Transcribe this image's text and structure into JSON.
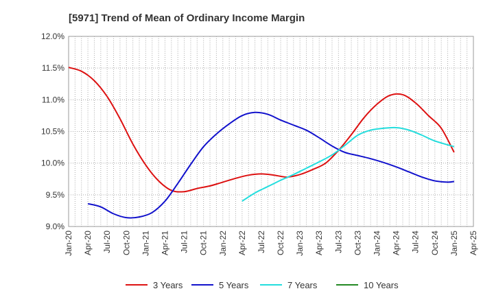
{
  "chart_data": {
    "type": "line",
    "title": "[5971]  Trend of Mean of Ordinary Income Margin",
    "xlabel": "",
    "ylabel": "",
    "x_ticks": [
      "Jan-20",
      "Apr-20",
      "Jul-20",
      "Oct-20",
      "Jan-21",
      "Apr-21",
      "Jul-21",
      "Oct-21",
      "Jan-22",
      "Apr-22",
      "Jul-22",
      "Oct-22",
      "Jan-23",
      "Apr-23",
      "Jul-23",
      "Oct-23",
      "Jan-24",
      "Apr-24",
      "Jul-24",
      "Oct-24",
      "Jan-25",
      "Apr-25"
    ],
    "y_ticks": [
      "9.0%",
      "9.5%",
      "10.0%",
      "10.5%",
      "11.0%",
      "11.5%",
      "12.0%"
    ],
    "ylim": [
      9.0,
      12.0
    ],
    "y_unit": "%",
    "grid": true,
    "legend_position": "bottom",
    "series": [
      {
        "name": "3 Years",
        "color": "#dd1111",
        "points": [
          [
            "Jan-20",
            11.51
          ],
          [
            "Mar-20",
            11.45
          ],
          [
            "May-20",
            11.3
          ],
          [
            "Jul-20",
            11.05
          ],
          [
            "Sep-20",
            10.7
          ],
          [
            "Nov-20",
            10.3
          ],
          [
            "Jan-21",
            9.97
          ],
          [
            "Mar-21",
            9.72
          ],
          [
            "May-21",
            9.57
          ],
          [
            "Jul-21",
            9.55
          ],
          [
            "Sep-21",
            9.6
          ],
          [
            "Nov-21",
            9.64
          ],
          [
            "Jan-22",
            9.7
          ],
          [
            "Mar-22",
            9.76
          ],
          [
            "May-22",
            9.81
          ],
          [
            "Jul-22",
            9.83
          ],
          [
            "Sep-22",
            9.81
          ],
          [
            "Nov-22",
            9.78
          ],
          [
            "Jan-23",
            9.82
          ],
          [
            "Mar-23",
            9.9
          ],
          [
            "May-23",
            10.0
          ],
          [
            "Jul-23",
            10.2
          ],
          [
            "Sep-23",
            10.45
          ],
          [
            "Nov-23",
            10.72
          ],
          [
            "Jan-24",
            10.93
          ],
          [
            "Mar-24",
            11.07
          ],
          [
            "May-24",
            11.08
          ],
          [
            "Jul-24",
            10.95
          ],
          [
            "Sep-24",
            10.75
          ],
          [
            "Nov-24",
            10.55
          ],
          [
            "Jan-25",
            10.17
          ]
        ]
      },
      {
        "name": "5 Years",
        "color": "#1111cc",
        "points": [
          [
            "Apr-20",
            9.36
          ],
          [
            "Jun-20",
            9.31
          ],
          [
            "Aug-20",
            9.2
          ],
          [
            "Oct-20",
            9.14
          ],
          [
            "Dec-20",
            9.15
          ],
          [
            "Feb-21",
            9.22
          ],
          [
            "Apr-21",
            9.4
          ],
          [
            "Jun-21",
            9.68
          ],
          [
            "Aug-21",
            9.98
          ],
          [
            "Oct-21",
            10.26
          ],
          [
            "Dec-21",
            10.46
          ],
          [
            "Feb-22",
            10.62
          ],
          [
            "Apr-22",
            10.75
          ],
          [
            "Jun-22",
            10.8
          ],
          [
            "Aug-22",
            10.77
          ],
          [
            "Oct-22",
            10.68
          ],
          [
            "Dec-22",
            10.6
          ],
          [
            "Feb-23",
            10.52
          ],
          [
            "Apr-23",
            10.4
          ],
          [
            "Jun-23",
            10.27
          ],
          [
            "Aug-23",
            10.17
          ],
          [
            "Oct-23",
            10.12
          ],
          [
            "Dec-23",
            10.07
          ],
          [
            "Feb-24",
            10.01
          ],
          [
            "Apr-24",
            9.94
          ],
          [
            "Jun-24",
            9.86
          ],
          [
            "Aug-24",
            9.78
          ],
          [
            "Oct-24",
            9.72
          ],
          [
            "Dec-24",
            9.7
          ],
          [
            "Jan-25",
            9.71
          ]
        ]
      },
      {
        "name": "7 Years",
        "color": "#22dddd",
        "points": [
          [
            "Apr-22",
            9.4
          ],
          [
            "Jun-22",
            9.53
          ],
          [
            "Aug-22",
            9.63
          ],
          [
            "Oct-22",
            9.73
          ],
          [
            "Dec-22",
            9.82
          ],
          [
            "Feb-23",
            9.92
          ],
          [
            "Apr-23",
            10.02
          ],
          [
            "Jun-23",
            10.13
          ],
          [
            "Aug-23",
            10.28
          ],
          [
            "Oct-23",
            10.44
          ],
          [
            "Dec-23",
            10.52
          ],
          [
            "Feb-24",
            10.55
          ],
          [
            "Apr-24",
            10.56
          ],
          [
            "Jun-24",
            10.52
          ],
          [
            "Aug-24",
            10.44
          ],
          [
            "Oct-24",
            10.35
          ],
          [
            "Jan-25",
            10.26
          ]
        ]
      },
      {
        "name": "10 Years",
        "color": "#228822",
        "points": []
      }
    ]
  }
}
